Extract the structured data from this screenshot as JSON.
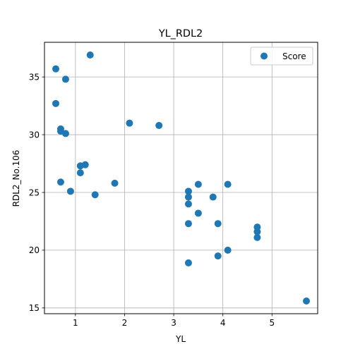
{
  "chart_data": {
    "type": "scatter",
    "title": "YL_RDL2",
    "xlabel": "YL",
    "ylabel": "RDL2_No.106",
    "xlim": [
      0.37,
      5.93
    ],
    "ylim": [
      14.5,
      38.0
    ],
    "xticks": [
      1,
      2,
      3,
      4,
      5
    ],
    "yticks": [
      15,
      20,
      25,
      30,
      35
    ],
    "grid": true,
    "legend_position": "top-right",
    "color": "#1f77b4",
    "series": [
      {
        "name": "Score",
        "points": [
          {
            "x": 0.6,
            "y": 35.7
          },
          {
            "x": 0.6,
            "y": 32.7
          },
          {
            "x": 0.7,
            "y": 30.5
          },
          {
            "x": 0.7,
            "y": 30.3
          },
          {
            "x": 0.7,
            "y": 25.9
          },
          {
            "x": 0.8,
            "y": 34.8
          },
          {
            "x": 0.8,
            "y": 30.1
          },
          {
            "x": 0.9,
            "y": 25.1
          },
          {
            "x": 1.1,
            "y": 27.3
          },
          {
            "x": 1.1,
            "y": 26.7
          },
          {
            "x": 1.2,
            "y": 27.4
          },
          {
            "x": 1.3,
            "y": 36.9
          },
          {
            "x": 1.4,
            "y": 24.8
          },
          {
            "x": 1.8,
            "y": 25.8
          },
          {
            "x": 2.1,
            "y": 31.0
          },
          {
            "x": 2.7,
            "y": 30.8
          },
          {
            "x": 3.3,
            "y": 25.1
          },
          {
            "x": 3.3,
            "y": 24.6
          },
          {
            "x": 3.3,
            "y": 24.0
          },
          {
            "x": 3.3,
            "y": 22.3
          },
          {
            "x": 3.3,
            "y": 18.9
          },
          {
            "x": 3.5,
            "y": 25.7
          },
          {
            "x": 3.5,
            "y": 23.2
          },
          {
            "x": 3.8,
            "y": 24.6
          },
          {
            "x": 3.9,
            "y": 22.3
          },
          {
            "x": 3.9,
            "y": 19.5
          },
          {
            "x": 4.1,
            "y": 25.7
          },
          {
            "x": 4.1,
            "y": 20.0
          },
          {
            "x": 4.7,
            "y": 22.0
          },
          {
            "x": 4.7,
            "y": 21.6
          },
          {
            "x": 4.7,
            "y": 21.1
          },
          {
            "x": 5.7,
            "y": 15.6
          }
        ]
      }
    ]
  }
}
